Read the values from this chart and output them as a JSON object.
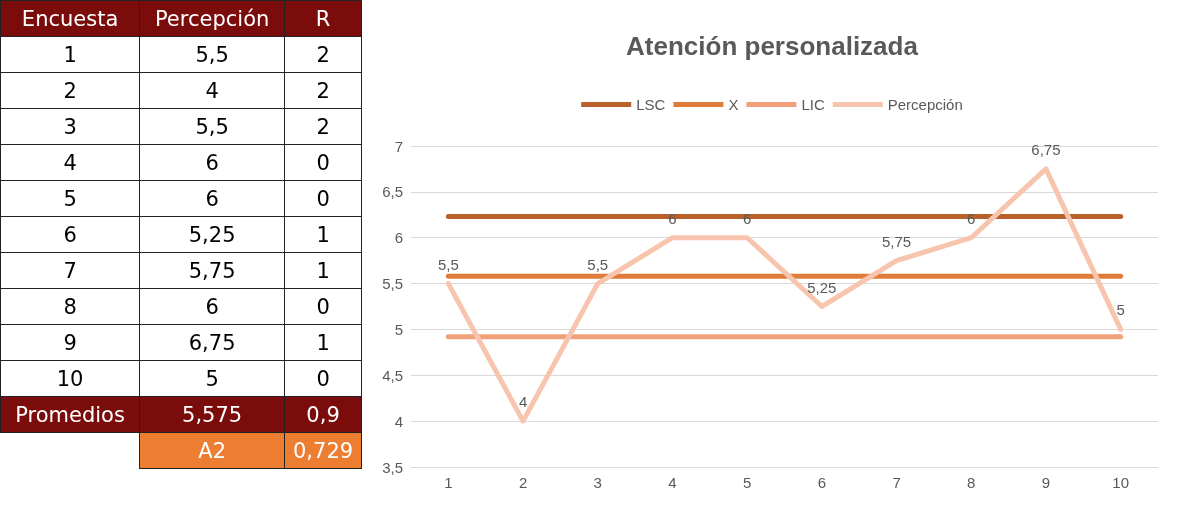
{
  "chart_data": [
    {
      "type": "heatmap",
      "ylabel": "Encuesta",
      "categories": [
        "Percepción",
        "R"
      ],
      "y_categories": [
        "1",
        "2",
        "3",
        "4",
        "5",
        "6",
        "7",
        "8",
        "9",
        "10"
      ],
      "cells": [
        [
          5.5,
          2
        ],
        [
          4,
          2
        ],
        [
          5.5,
          2
        ],
        [
          6,
          0
        ],
        [
          6,
          0
        ],
        [
          5.25,
          1
        ],
        [
          5.75,
          1
        ],
        [
          6,
          0
        ],
        [
          6.75,
          1
        ],
        [
          5,
          0
        ]
      ],
      "cell_labels": [
        [
          "5,5",
          "2"
        ],
        [
          "4",
          "2"
        ],
        [
          "5,5",
          "2"
        ],
        [
          "6",
          "0"
        ],
        [
          "6",
          "0"
        ],
        [
          "5,25",
          "1"
        ],
        [
          "5,75",
          "1"
        ],
        [
          "6",
          "0"
        ],
        [
          "6,75",
          "1"
        ],
        [
          "5",
          "0"
        ]
      ],
      "annotations": [
        "Promedios",
        "5,575",
        "0,9",
        "A2",
        "0,729"
      ]
    },
    {
      "type": "line",
      "title": "Atención personalizada",
      "categories": [
        "1",
        "2",
        "3",
        "4",
        "5",
        "6",
        "7",
        "8",
        "9",
        "10"
      ],
      "series": [
        {
          "name": "LSC",
          "color": "#b8602a",
          "values": [
            6.23,
            6.23,
            6.23,
            6.23,
            6.23,
            6.23,
            6.23,
            6.23,
            6.23,
            6.23
          ]
        },
        {
          "name": "X",
          "color": "#e07b39",
          "values": [
            5.58,
            5.58,
            5.58,
            5.58,
            5.58,
            5.58,
            5.58,
            5.58,
            5.58,
            5.58
          ]
        },
        {
          "name": "LIC",
          "color": "#f0a07a",
          "values": [
            4.92,
            4.92,
            4.92,
            4.92,
            4.92,
            4.92,
            4.92,
            4.92,
            4.92,
            4.92
          ]
        },
        {
          "name": "Percepción",
          "color": "#f7c4ae",
          "values": [
            5.5,
            4,
            5.5,
            6,
            6,
            5.25,
            5.75,
            6,
            6.75,
            5
          ],
          "value_labels": [
            "5,5",
            "4",
            "5,5",
            "6",
            "6",
            "5,25",
            "5,75",
            "6",
            "6,75",
            "5"
          ]
        }
      ],
      "ylim": [
        3.5,
        7
      ],
      "yticks": [
        {
          "value": 3.5,
          "label": "3,5"
        },
        4,
        {
          "value": 4.5,
          "label": "4,5"
        },
        5,
        {
          "value": 5.5,
          "label": "5,5"
        },
        6,
        {
          "value": 6.5,
          "label": "6,5"
        },
        7
      ],
      "grid": "y",
      "legend": "top",
      "marker": "none",
      "line_style": "solid"
    }
  ]
}
